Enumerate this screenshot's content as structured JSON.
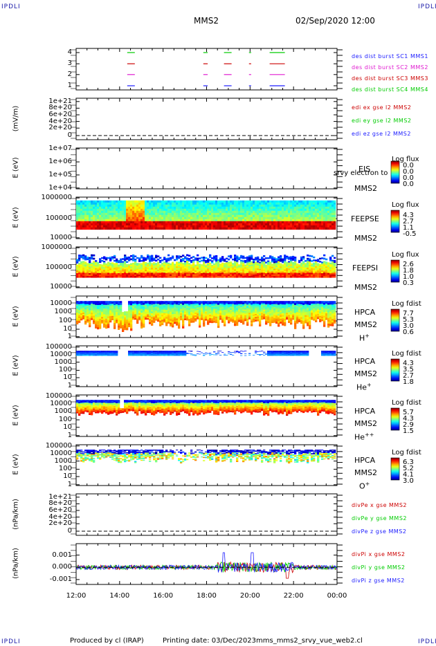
{
  "header": {
    "corner_label": "IPDLI",
    "spacecraft": "MMS2",
    "datetime": "02/Sep/2020 12:00"
  },
  "panels": {
    "burst": {
      "yticks": [
        "4",
        "3",
        "2",
        "1"
      ],
      "legend": [
        {
          "text": "des dist burst SC1 MMS1",
          "color": "#1a1aff"
        },
        {
          "text": "des dist burst SC2 MMS2",
          "color": "#e01ad0"
        },
        {
          "text": "des dist burst SC3 MMS3",
          "color": "#cc0000"
        },
        {
          "text": "des dist burst SC4 MMS4",
          "color": "#00cc00"
        }
      ]
    },
    "edi": {
      "ylabel": "(mV/m)",
      "yticks": [
        "1e+21",
        "8e+20",
        "6e+20",
        "4e+20",
        "2e+20",
        "0"
      ],
      "legend": [
        {
          "text": "edi ex gse l2 MMS2",
          "color": "#cc0000"
        },
        {
          "text": "edi ey gse l2 MMS2",
          "color": "#00cc00"
        },
        {
          "text": "edi ez gse l2 MMS2",
          "color": "#1a1aff"
        }
      ]
    },
    "eis": {
      "ylabel": "E (eV)",
      "yticks": [
        "1e+07",
        "1e+06",
        "1e+05",
        "1e+04"
      ],
      "inst": "EIS",
      "overlay": "srvy electron to",
      "sc": "MMS2",
      "cb_title": "Log flux",
      "cb_values": [
        "0.0",
        "0.0",
        "0.0",
        "0.0"
      ]
    },
    "feepse": {
      "ylabel": "E (eV)",
      "yticks": [
        "1000000",
        "100000",
        "10000"
      ],
      "inst": "FEEPSE",
      "sc": "MMS2",
      "cb_title": "Log flux",
      "cb_values": [
        "4.3",
        "2.7",
        "1.1",
        "-0.5"
      ]
    },
    "feepsi": {
      "ylabel": "E (eV)",
      "yticks": [
        "1000000",
        "100000",
        "10000"
      ],
      "inst": "FEEPSI",
      "sc": "MMS2",
      "cb_title": "Log flux",
      "cb_values": [
        "2.6",
        "1.8",
        "1.0",
        "0.3"
      ]
    },
    "hpca_h": {
      "ylabel": "E (eV)",
      "yticks": [
        "10000",
        "1000",
        "100",
        "10",
        "1"
      ],
      "inst": "HPCA",
      "sc": "MMS2",
      "species": "H",
      "charge": "+",
      "cb_title": "Log fdist",
      "cb_values": [
        "7.7",
        "5.3",
        "3.0",
        "0.6"
      ]
    },
    "hpca_he": {
      "ylabel": "E (eV)",
      "yticks": [
        "100000",
        "10000",
        "1000",
        "100",
        "10",
        "1"
      ],
      "inst": "HPCA",
      "sc": "MMS2",
      "species": "He",
      "charge": "+",
      "cb_title": "Log fdist",
      "cb_values": [
        "4.3",
        "3.5",
        "2.7",
        "1.8"
      ]
    },
    "hpca_hepp": {
      "ylabel": "E (eV)",
      "yticks": [
        "100000",
        "10000",
        "1000",
        "100",
        "10",
        "1"
      ],
      "inst": "HPCA",
      "sc": "MMS2",
      "species": "He",
      "charge": "++",
      "cb_title": "Log fdist",
      "cb_values": [
        "5.7",
        "4.3",
        "2.9",
        "1.5"
      ]
    },
    "hpca_o": {
      "ylabel": "E (eV)",
      "yticks": [
        "100000",
        "10000",
        "1000",
        "100",
        "10",
        "1"
      ],
      "inst": "HPCA",
      "sc": "MMS2",
      "species": "O",
      "charge": "+",
      "cb_title": "Log fdist",
      "cb_values": [
        "6.3",
        "5.2",
        "4.1",
        "3.0"
      ]
    },
    "divpe": {
      "ylabel": "(nPa/km)",
      "yticks": [
        "1e+21",
        "8e+20",
        "6e+20",
        "4e+20",
        "2e+20",
        "0"
      ],
      "legend": [
        {
          "text": "divPe x gse MMS2",
          "color": "#cc0000"
        },
        {
          "text": "divPe y gse MMS2",
          "color": "#00cc00"
        },
        {
          "text": "divPe z gse MMS2",
          "color": "#1a1aff"
        }
      ]
    },
    "divpi": {
      "ylabel": "(nPa/km)",
      "yticks": [
        "0.001",
        "0.000",
        "-0.001"
      ],
      "legend": [
        {
          "text": "divPi x gse MMS2",
          "color": "#cc0000"
        },
        {
          "text": "divPi y gse MMS2",
          "color": "#00cc00"
        },
        {
          "text": "divPi z gse MMS2",
          "color": "#1a1aff"
        }
      ]
    }
  },
  "xaxis": {
    "ticks": [
      "12:00",
      "14:00",
      "16:00",
      "18:00",
      "20:00",
      "22:00",
      "00:00"
    ]
  },
  "footer": {
    "produced": "Produced by cl (IRAP)",
    "printed": "Printing date: 03/Dec/2023",
    "file": "mms_mms2_srvy_vue_web2.cl"
  },
  "chart_data": {
    "type": "line",
    "title": "MMS2",
    "subtitle": "02/Sep/2020 12:00",
    "x_hours": [
      12,
      14,
      16,
      18,
      20,
      22,
      24
    ],
    "burst_intervals_hours": [
      [
        14.35,
        14.7
      ],
      [
        17.85,
        18.05
      ],
      [
        18.8,
        19.15
      ],
      [
        19.95,
        20.05
      ],
      [
        20.9,
        21.6
      ]
    ],
    "burst_series": [
      {
        "name": "des dist burst SC1 MMS1",
        "level": 1
      },
      {
        "name": "des dist burst SC2 MMS2",
        "level": 2
      },
      {
        "name": "des dist burst SC3 MMS3",
        "level": 3
      },
      {
        "name": "des dist burst SC4 MMS4",
        "level": 4
      }
    ],
    "divPi_ylim": [
      -0.0015,
      0.0015
    ],
    "divPi_series": [
      "divPi x gse MMS2",
      "divPi y gse MMS2",
      "divPi z gse MMS2"
    ],
    "spectrograms": [
      {
        "name": "FEEPSE",
        "ylim_eV": [
          10000,
          1000000
        ],
        "cbar": [
          -0.5,
          4.3
        ]
      },
      {
        "name": "FEEPSI",
        "ylim_eV": [
          10000,
          1000000
        ],
        "cbar": [
          0.3,
          2.6
        ]
      },
      {
        "name": "HPCA H+",
        "ylim_eV": [
          1,
          10000
        ],
        "cbar": [
          0.6,
          7.7
        ]
      },
      {
        "name": "HPCA He+",
        "ylim_eV": [
          1,
          100000
        ],
        "cbar": [
          1.8,
          4.3
        ]
      },
      {
        "name": "HPCA He++",
        "ylim_eV": [
          1,
          100000
        ],
        "cbar": [
          1.5,
          5.7
        ]
      },
      {
        "name": "HPCA O+",
        "ylim_eV": [
          1,
          100000
        ],
        "cbar": [
          3.0,
          6.3
        ]
      }
    ]
  }
}
